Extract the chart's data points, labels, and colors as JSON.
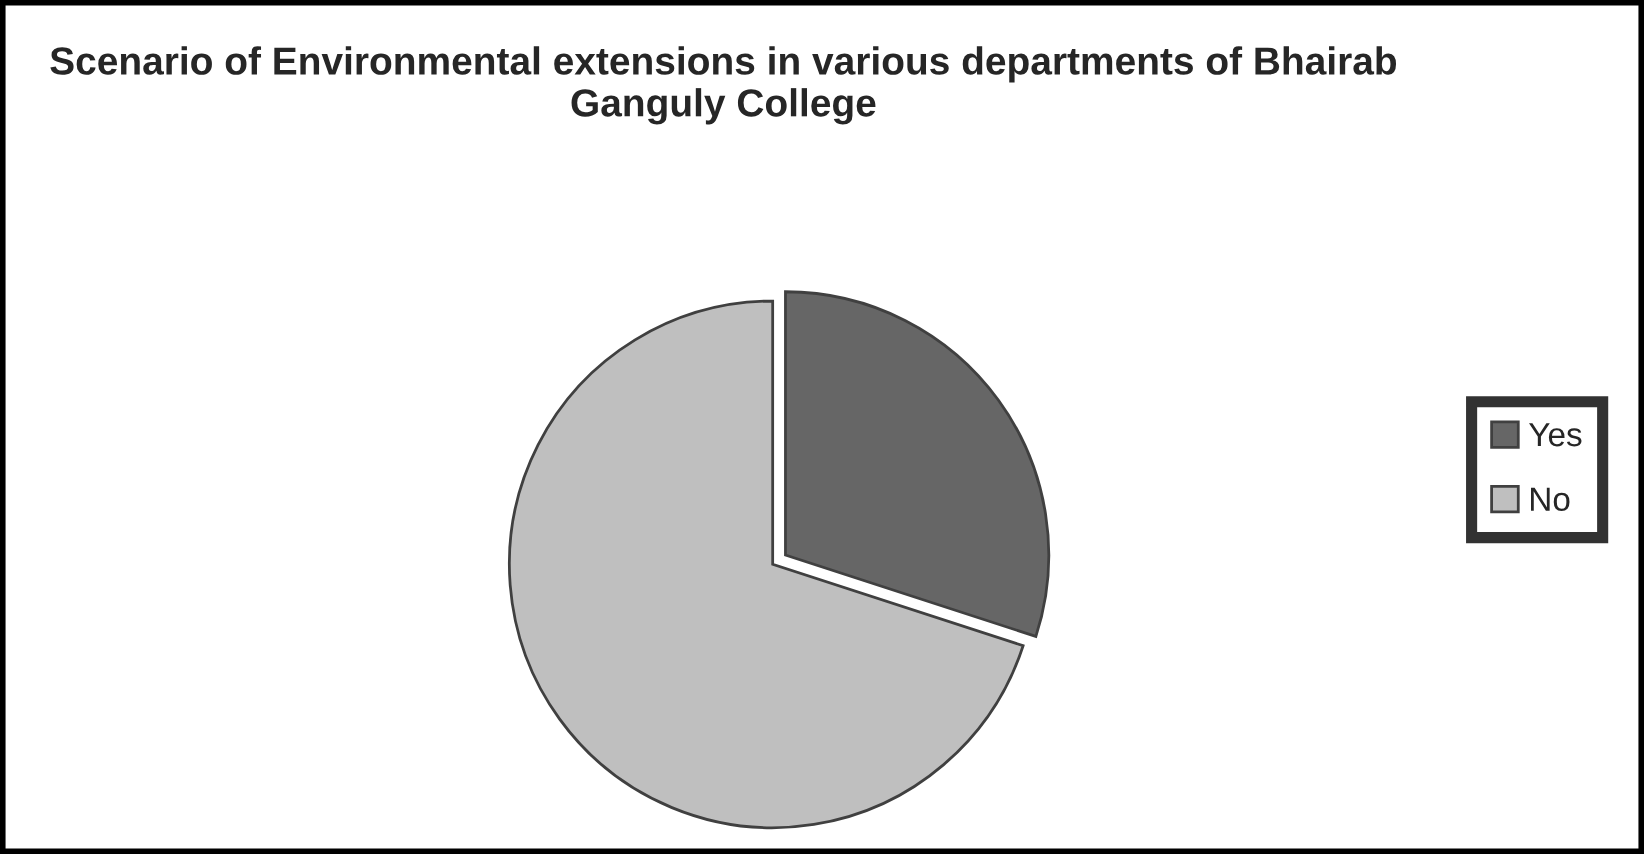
{
  "chart_data": {
    "type": "pie",
    "title": "Scenario of Environmental extensions in various departments of Bhairab Ganguly College",
    "categories": [
      "Yes",
      "No"
    ],
    "values": [
      30,
      70
    ],
    "colors": [
      "#666666",
      "#bfbfbf"
    ],
    "legend": "right"
  }
}
